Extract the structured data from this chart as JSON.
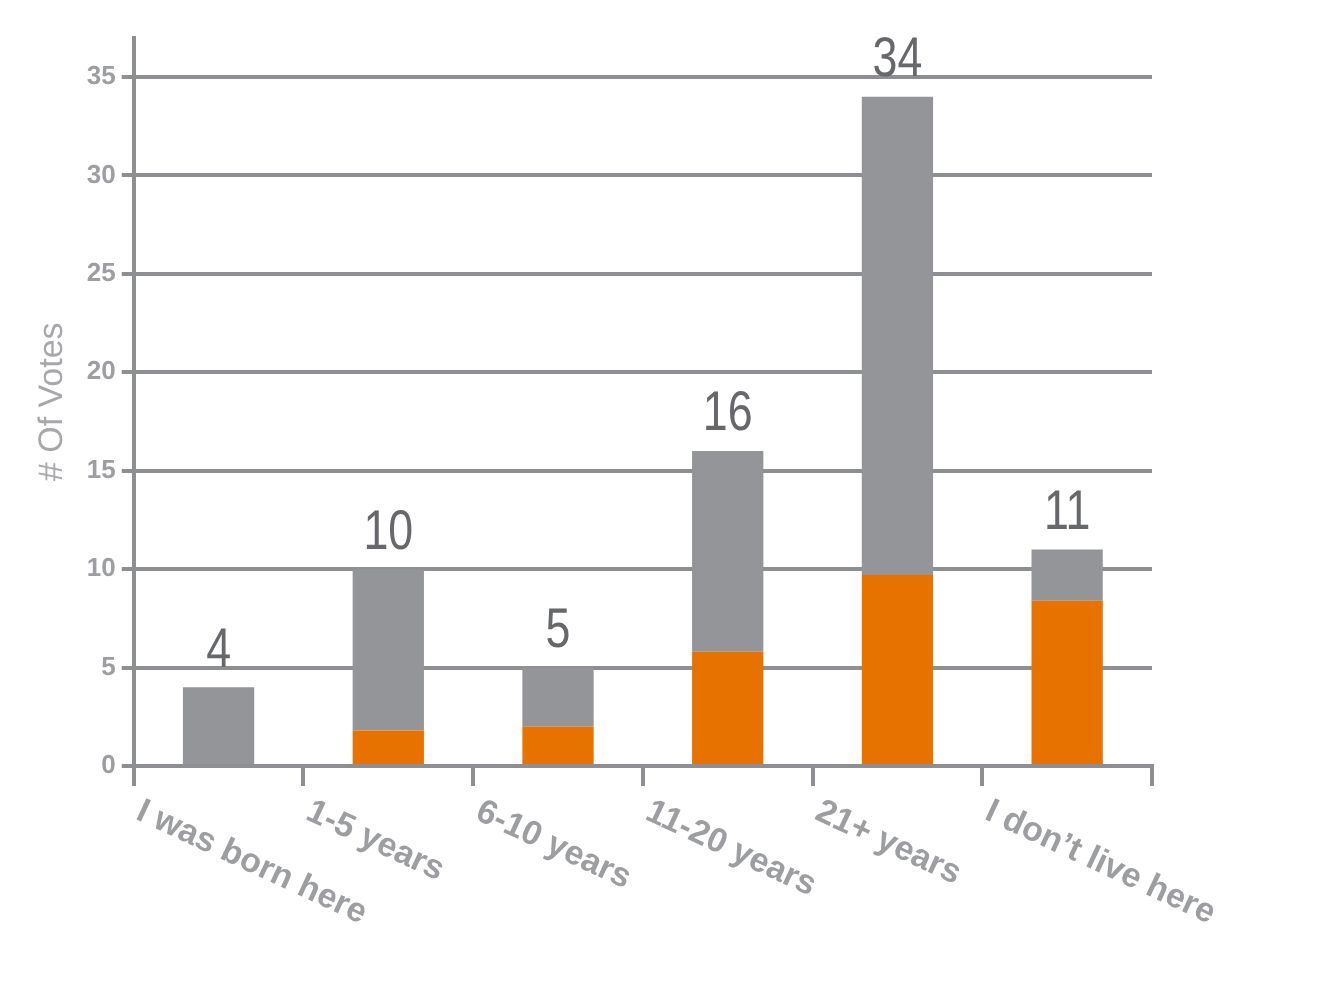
{
  "chart_data": {
    "type": "bar",
    "stacked": true,
    "ylabel": "# Of Votes",
    "categories": [
      "I was born here",
      "1-5 years",
      "6-10 years",
      "11-20 years",
      "21+ years",
      "I don’t live here"
    ],
    "series": [
      {
        "color": "#e87200",
        "values": [
          0,
          1.8,
          2,
          5.8,
          9.7,
          8.4
        ]
      },
      {
        "color": "#939598",
        "values": [
          4,
          8.2,
          3,
          10.2,
          24.3,
          2.6
        ]
      }
    ],
    "totals": [
      "4",
      "10",
      "5",
      "16",
      "34",
      "11"
    ],
    "ylim": [
      0,
      37
    ],
    "yticks": [
      0,
      5,
      10,
      15,
      20,
      25,
      30,
      35
    ],
    "grid": "y",
    "legend": false
  }
}
